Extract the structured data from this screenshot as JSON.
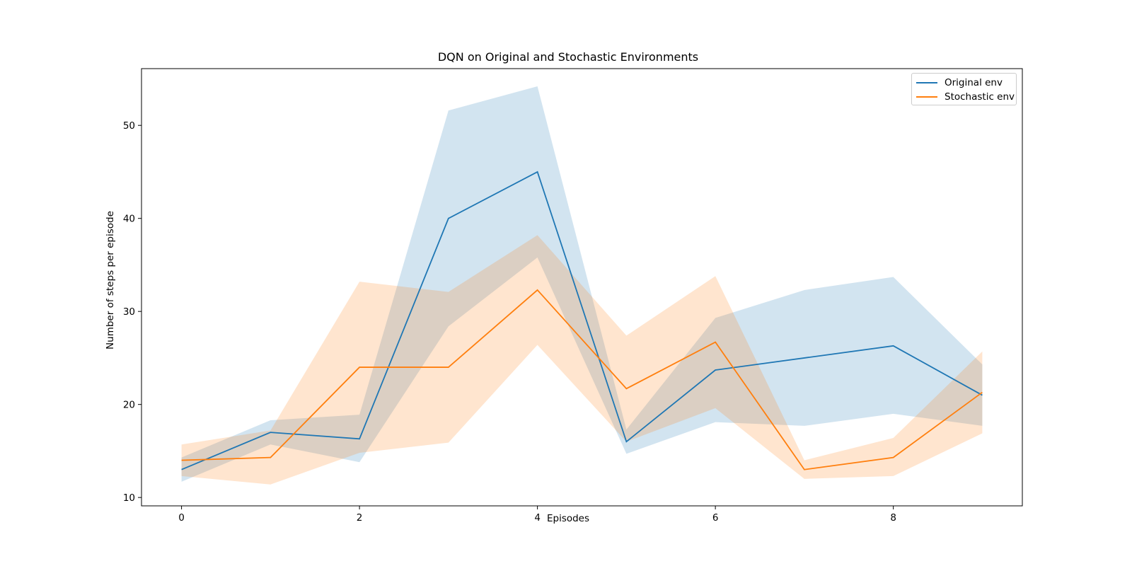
{
  "chart_data": {
    "type": "line",
    "title": "DQN on Original and Stochastic Environments",
    "xlabel": "Episodes",
    "ylabel": "Number of steps per episode",
    "x": [
      0,
      1,
      2,
      3,
      4,
      5,
      6,
      7,
      8,
      9
    ],
    "xlim": [
      -0.45,
      9.45
    ],
    "ylim": [
      9.1,
      56.1
    ],
    "xticks": [
      0,
      2,
      4,
      6,
      8
    ],
    "yticks": [
      10,
      20,
      30,
      40,
      50
    ],
    "grid": false,
    "legend_position": "top-right",
    "series": [
      {
        "name": "Original env",
        "color": "#1f77b4",
        "values": [
          13.0,
          17.0,
          16.3,
          40.0,
          45.0,
          16.0,
          23.7,
          25.0,
          26.3,
          21.0
        ],
        "band_lower": [
          11.7,
          15.7,
          13.8,
          28.4,
          35.8,
          14.7,
          18.1,
          17.7,
          19.0,
          17.7
        ],
        "band_upper": [
          14.3,
          18.3,
          18.9,
          51.6,
          54.2,
          17.3,
          29.3,
          32.3,
          33.7,
          24.3
        ]
      },
      {
        "name": "Stochastic env",
        "color": "#ff7f0e",
        "values": [
          14.0,
          14.3,
          24.0,
          24.0,
          32.3,
          21.7,
          26.7,
          13.0,
          14.3,
          21.3
        ],
        "band_lower": [
          12.3,
          11.4,
          14.8,
          15.9,
          26.4,
          16.0,
          19.6,
          12.0,
          12.3,
          16.9
        ],
        "band_upper": [
          15.7,
          17.2,
          33.2,
          32.1,
          38.2,
          27.4,
          33.8,
          14.0,
          16.4,
          25.7
        ]
      }
    ]
  }
}
